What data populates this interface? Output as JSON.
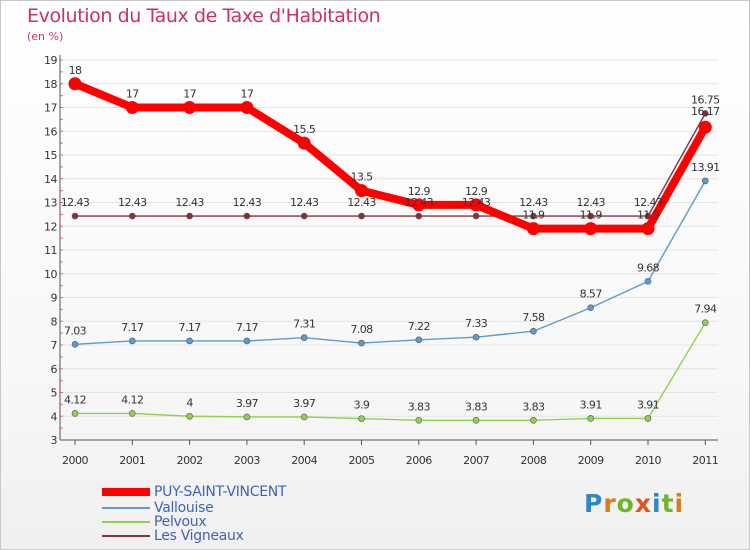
{
  "title": "Evolution du Taux de Taxe d'Habitation",
  "subtitle": "(en %)",
  "logo": {
    "text": "Proxiti",
    "letter_colors": [
      "#2f86c9",
      "#e07a17",
      "#6fb52c",
      "#e0541f",
      "#2f86c9",
      "#6fb52c",
      "#e07a17"
    ]
  },
  "chart_data": {
    "type": "line",
    "x": [
      "2000",
      "2001",
      "2002",
      "2003",
      "2004",
      "2005",
      "2006",
      "2007",
      "2008",
      "2009",
      "2010",
      "2011"
    ],
    "ylim": [
      3,
      19
    ],
    "yticks": [
      "3",
      "4",
      "5",
      "6",
      "7",
      "8",
      "9",
      "10",
      "11",
      "12",
      "13",
      "14",
      "15",
      "16",
      "17",
      "18",
      "19"
    ],
    "grid": "horizontal",
    "legend_position": "bottom-left",
    "series": [
      {
        "name": "PUY-SAINT-VINCENT",
        "color": "#ff0000",
        "values": [
          18,
          17,
          17,
          17,
          15.5,
          13.5,
          12.9,
          12.9,
          11.9,
          11.9,
          11.9,
          16.17
        ],
        "labels": [
          "18",
          "17",
          "17",
          "17",
          "15.5",
          "13.5",
          "12.9",
          "12.9",
          "11.9",
          "11.9",
          "11.9",
          "16.17"
        ]
      },
      {
        "name": "Vallouise",
        "color": "#5b9bd5",
        "values": [
          7.03,
          7.17,
          7.17,
          7.17,
          7.31,
          7.08,
          7.22,
          7.33,
          7.58,
          8.57,
          9.68,
          13.91
        ],
        "labels": [
          "7.03",
          "7.17",
          "7.17",
          "7.17",
          "7.31",
          "7.08",
          "7.22",
          "7.33",
          "7.58",
          "8.57",
          "9.68",
          "13.91"
        ]
      },
      {
        "name": "Pelvoux",
        "color": "#92d050",
        "values": [
          4.12,
          4.12,
          4,
          3.97,
          3.97,
          3.9,
          3.83,
          3.83,
          3.83,
          3.91,
          3.91,
          7.94
        ],
        "labels": [
          "4.12",
          "4.12",
          "4",
          "3.97",
          "3.97",
          "3.9",
          "3.83",
          "3.83",
          "3.83",
          "3.91",
          "3.91",
          "7.94"
        ]
      },
      {
        "name": "Les Vigneaux",
        "color": "#8b2e3c",
        "values": [
          12.43,
          12.43,
          12.43,
          12.43,
          12.43,
          12.43,
          12.43,
          12.43,
          12.43,
          12.43,
          12.43,
          16.75
        ],
        "labels": [
          "12.43",
          "12.43",
          "12.43",
          "12.43",
          "12.43",
          "12.43",
          "12.43",
          "12.43",
          "12.43",
          "12.43",
          "12.43",
          "16.75"
        ]
      }
    ]
  }
}
